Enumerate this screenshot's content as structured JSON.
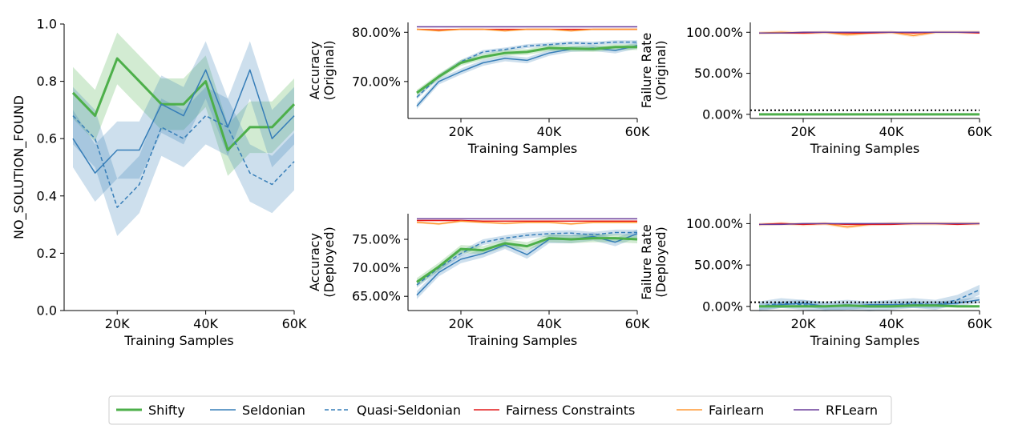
{
  "figure": {
    "legend": [
      {
        "name": "Shifty",
        "color": "#4daf4a",
        "style": "solid",
        "width": 3
      },
      {
        "name": "Seldonian",
        "color": "#377eb8",
        "style": "solid",
        "width": 1.5
      },
      {
        "name": "Quasi-Seldonian",
        "color": "#377eb8",
        "style": "dashed",
        "width": 1.5
      },
      {
        "name": "Fairness Constraints",
        "color": "#e41a1c",
        "style": "solid",
        "width": 1.5
      },
      {
        "name": "Fairlearn",
        "color": "#ff9933",
        "style": "solid",
        "width": 1.5
      },
      {
        "name": "RFLearn",
        "color": "#6a3d9a",
        "style": "solid",
        "width": 1.5
      }
    ]
  },
  "chart_data": [
    {
      "id": "nsf",
      "type": "line",
      "xlabel": "Training Samples",
      "ylabel": "NO_SOLUTION_FOUND",
      "xlim": [
        8000,
        60000
      ],
      "ylim": [
        0,
        1
      ],
      "xticks": [
        20000,
        40000,
        60000
      ],
      "xtick_labels": [
        "20K",
        "40K",
        "60K"
      ],
      "yticks": [
        0,
        0.2,
        0.4,
        0.6,
        0.8,
        1.0
      ],
      "ytick_labels": [
        "0.0",
        "0.2",
        "0.4",
        "0.6",
        "0.8",
        "1.0"
      ],
      "x": [
        10000,
        15000,
        20000,
        25000,
        30000,
        35000,
        40000,
        45000,
        50000,
        55000,
        60000
      ],
      "series": [
        {
          "name": "Shifty",
          "values": [
            0.76,
            0.68,
            0.88,
            0.8,
            0.72,
            0.72,
            0.8,
            0.56,
            0.64,
            0.64,
            0.72
          ],
          "band": 0.09
        },
        {
          "name": "Seldonian",
          "values": [
            0.6,
            0.48,
            0.56,
            0.56,
            0.72,
            0.68,
            0.84,
            0.64,
            0.84,
            0.6,
            0.68
          ],
          "band": 0.1
        },
        {
          "name": "Quasi-Seldonian",
          "values": [
            0.68,
            0.6,
            0.36,
            0.44,
            0.64,
            0.6,
            0.68,
            0.64,
            0.48,
            0.44,
            0.52
          ],
          "band": 0.1
        }
      ]
    },
    {
      "id": "acc-orig",
      "type": "line",
      "xlabel": "Training Samples",
      "ylabel": [
        "Accuracy",
        "(Original)"
      ],
      "xlim": [
        8000,
        60000
      ],
      "ylim": [
        0.625,
        0.82
      ],
      "xticks": [
        20000,
        40000,
        60000
      ],
      "xtick_labels": [
        "20K",
        "40K",
        "60K"
      ],
      "yticks": [
        0.7,
        0.8
      ],
      "ytick_labels": [
        "70.00%",
        "80.00%"
      ],
      "x": [
        10000,
        15000,
        20000,
        25000,
        30000,
        35000,
        40000,
        45000,
        50000,
        55000,
        60000
      ],
      "series": [
        {
          "name": "Fairness Constraints",
          "values": [
            0.806,
            0.805,
            0.806,
            0.806,
            0.806,
            0.806,
            0.806,
            0.806,
            0.806,
            0.806,
            0.806
          ],
          "band": 0.001
        },
        {
          "name": "Fairlearn",
          "values": [
            0.806,
            0.803,
            0.806,
            0.806,
            0.803,
            0.806,
            0.806,
            0.803,
            0.806,
            0.806,
            0.806
          ],
          "band": 0.002
        },
        {
          "name": "RFLearn",
          "values": [
            0.811,
            0.811,
            0.811,
            0.811,
            0.811,
            0.811,
            0.811,
            0.811,
            0.811,
            0.811,
            0.811
          ],
          "band": 0
        },
        {
          "name": "Seldonian",
          "values": [
            0.65,
            0.7,
            0.72,
            0.738,
            0.747,
            0.743,
            0.758,
            0.766,
            0.768,
            0.763,
            0.773
          ],
          "band": 0.006
        },
        {
          "name": "Quasi-Seldonian",
          "values": [
            0.668,
            0.71,
            0.74,
            0.76,
            0.765,
            0.772,
            0.775,
            0.778,
            0.777,
            0.78,
            0.78
          ],
          "band": 0.004
        },
        {
          "name": "Shifty",
          "values": [
            0.677,
            0.71,
            0.738,
            0.75,
            0.758,
            0.76,
            0.768,
            0.767,
            0.766,
            0.77,
            0.77
          ],
          "band": 0.006
        }
      ]
    },
    {
      "id": "fail-orig",
      "type": "line",
      "xlabel": "Training Samples",
      "ylabel": [
        "Failure Rate",
        "(Original)"
      ],
      "xlim": [
        8000,
        60000
      ],
      "ylim": [
        -0.05,
        1.12
      ],
      "xticks": [
        20000,
        40000,
        60000
      ],
      "xtick_labels": [
        "20K",
        "40K",
        "60K"
      ],
      "yticks": [
        0,
        0.5,
        1.0
      ],
      "ytick_labels": [
        "0.00%",
        "50.00%",
        "100.00%"
      ],
      "threshold": 0.05,
      "x": [
        10000,
        15000,
        20000,
        25000,
        30000,
        35000,
        40000,
        45000,
        50000,
        55000,
        60000
      ],
      "series": [
        {
          "name": "Fairlearn",
          "values": [
            0.99,
            1.0,
            0.99,
            1.0,
            0.97,
            0.99,
            1.0,
            0.96,
            1.0,
            1.0,
            1.0
          ],
          "band": 0.02
        },
        {
          "name": "Fairness Constraints",
          "values": [
            0.99,
            0.99,
            0.99,
            1.0,
            0.99,
            0.99,
            1.0,
            0.99,
            1.0,
            1.0,
            0.99
          ],
          "band": 0
        },
        {
          "name": "RFLearn",
          "values": [
            0.99,
            0.99,
            1.0,
            1.0,
            1.0,
            1.0,
            1.0,
            1.0,
            1.0,
            1.0,
            1.0
          ],
          "band": 0
        },
        {
          "name": "Seldonian",
          "values": [
            0.0,
            0.0,
            0.0,
            0.0,
            0.0,
            0.0,
            0.0,
            0.0,
            0.0,
            0.0,
            0.0
          ],
          "band": 0
        },
        {
          "name": "Quasi-Seldonian",
          "values": [
            0.0,
            0.0,
            0.0,
            0.0,
            0.0,
            0.0,
            0.0,
            0.0,
            0.0,
            0.0,
            0.0
          ],
          "band": 0
        },
        {
          "name": "Shifty",
          "values": [
            0.0,
            0.0,
            0.0,
            0.0,
            0.0,
            0.0,
            0.0,
            0.0,
            0.0,
            0.0,
            0.0
          ],
          "band": 0
        }
      ]
    },
    {
      "id": "acc-dep",
      "type": "line",
      "xlabel": "Training Samples",
      "ylabel": [
        "Accuracy",
        "(Deployed)"
      ],
      "xlim": [
        8000,
        60000
      ],
      "ylim": [
        0.625,
        0.795
      ],
      "xticks": [
        20000,
        40000,
        60000
      ],
      "xtick_labels": [
        "20K",
        "40K",
        "60K"
      ],
      "yticks": [
        0.65,
        0.7,
        0.75
      ],
      "ytick_labels": [
        "65.00%",
        "70.00%",
        "75.00%"
      ],
      "x": [
        10000,
        15000,
        20000,
        25000,
        30000,
        35000,
        40000,
        45000,
        50000,
        55000,
        60000
      ],
      "series": [
        {
          "name": "Fairness Constraints",
          "values": [
            0.783,
            0.783,
            0.783,
            0.782,
            0.782,
            0.782,
            0.782,
            0.782,
            0.782,
            0.782,
            0.782
          ],
          "band": 0.001
        },
        {
          "name": "Fairlearn",
          "values": [
            0.78,
            0.777,
            0.782,
            0.78,
            0.778,
            0.78,
            0.78,
            0.777,
            0.78,
            0.78,
            0.78
          ],
          "band": 0.002
        },
        {
          "name": "RFLearn",
          "values": [
            0.786,
            0.786,
            0.786,
            0.786,
            0.786,
            0.786,
            0.786,
            0.786,
            0.786,
            0.786,
            0.786
          ],
          "band": 0
        },
        {
          "name": "Seldonian",
          "values": [
            0.652,
            0.692,
            0.715,
            0.725,
            0.74,
            0.723,
            0.75,
            0.75,
            0.755,
            0.745,
            0.76
          ],
          "band": 0.007
        },
        {
          "name": "Quasi-Seldonian",
          "values": [
            0.67,
            0.7,
            0.725,
            0.745,
            0.752,
            0.757,
            0.76,
            0.761,
            0.758,
            0.762,
            0.762
          ],
          "band": 0.005
        },
        {
          "name": "Shifty",
          "values": [
            0.675,
            0.702,
            0.733,
            0.731,
            0.743,
            0.738,
            0.752,
            0.75,
            0.752,
            0.752,
            0.75
          ],
          "band": 0.007
        }
      ]
    },
    {
      "id": "fail-dep",
      "type": "line",
      "xlabel": "Training Samples",
      "ylabel": [
        "Failure Rate",
        "(Deployed)"
      ],
      "xlim": [
        8000,
        60000
      ],
      "ylim": [
        -0.05,
        1.12
      ],
      "xticks": [
        20000,
        40000,
        60000
      ],
      "xtick_labels": [
        "20K",
        "40K",
        "60K"
      ],
      "yticks": [
        0,
        0.5,
        1.0
      ],
      "ytick_labels": [
        "0.00%",
        "50.00%",
        "100.00%"
      ],
      "threshold": 0.05,
      "x": [
        10000,
        15000,
        20000,
        25000,
        30000,
        35000,
        40000,
        45000,
        50000,
        55000,
        60000
      ],
      "series": [
        {
          "name": "Fairlearn",
          "values": [
            0.99,
            1.0,
            0.99,
            1.0,
            0.96,
            0.99,
            1.0,
            1.0,
            1.0,
            1.0,
            1.0
          ],
          "band": 0.02
        },
        {
          "name": "Fairness Constraints",
          "values": [
            0.99,
            1.0,
            0.99,
            1.0,
            0.99,
            0.99,
            0.99,
            1.0,
            1.0,
            0.99,
            1.0
          ],
          "band": 0
        },
        {
          "name": "RFLearn",
          "values": [
            0.99,
            0.99,
            1.0,
            1.0,
            1.0,
            1.0,
            1.0,
            1.0,
            1.0,
            1.0,
            1.0
          ],
          "band": 0
        },
        {
          "name": "Seldonian",
          "values": [
            0.0,
            0.02,
            0.04,
            0.0,
            0.0,
            0.02,
            0.02,
            0.02,
            0.02,
            0.04,
            0.08
          ],
          "band": 0.04
        },
        {
          "name": "Quasi-Seldonian",
          "values": [
            0.0,
            0.04,
            0.02,
            0.0,
            0.02,
            0.0,
            0.02,
            0.04,
            0.02,
            0.08,
            0.2
          ],
          "band": 0.06
        },
        {
          "name": "Shifty",
          "values": [
            0.0,
            0.0,
            0.0,
            0.0,
            0.01,
            0.0,
            0.0,
            0.01,
            0.01,
            0.0,
            0.0
          ],
          "band": 0.01
        }
      ]
    }
  ]
}
